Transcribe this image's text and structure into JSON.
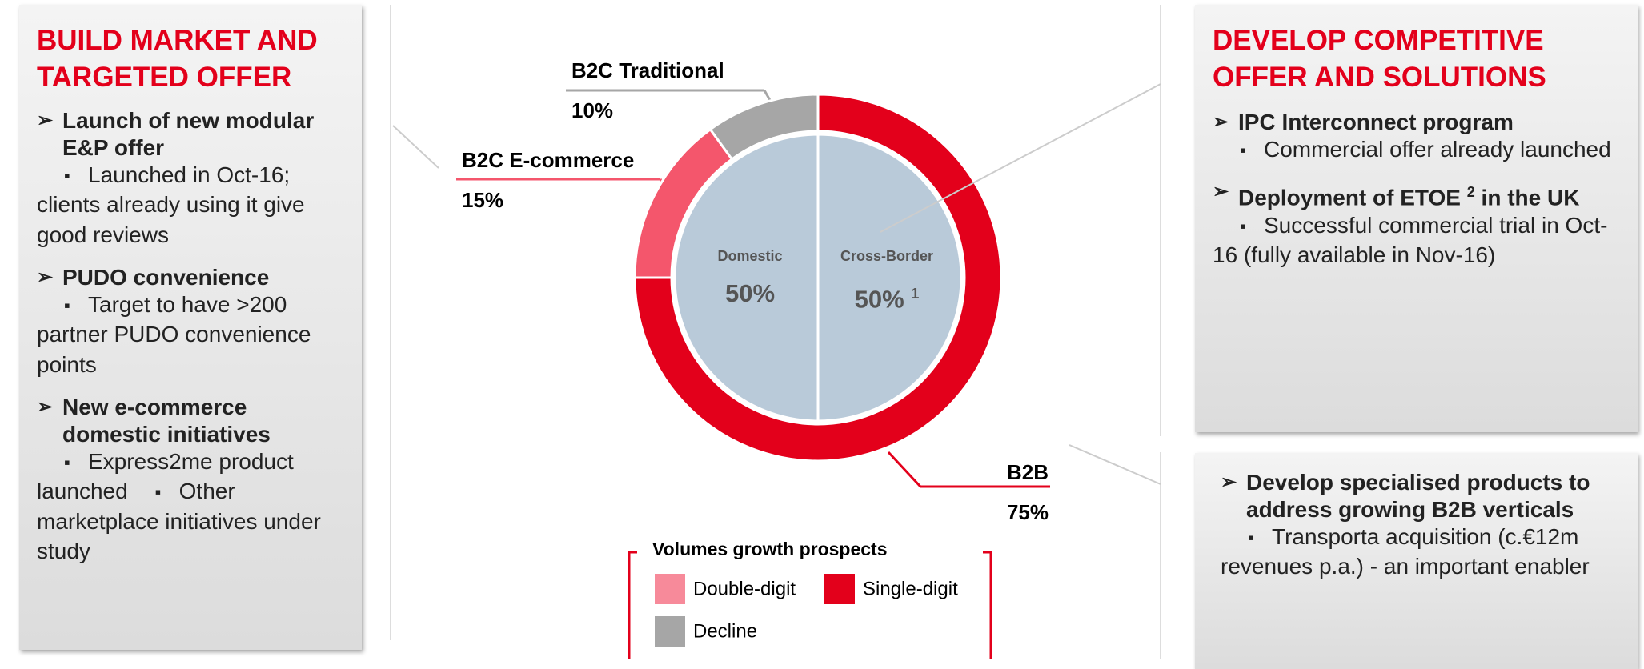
{
  "left_panel": {
    "title": "BUILD MARKET AND TARGETED OFFER",
    "items": [
      {
        "heading": "Launch of new modular E&P offer",
        "bullets": [
          "Launched in Oct-16; clients already using it give good reviews"
        ]
      },
      {
        "heading": "PUDO convenience",
        "bullets": [
          "Target to have >200 partner PUDO convenience points"
        ]
      },
      {
        "heading": "New e-commerce domestic initiatives",
        "bullets": [
          "Express2me product launched",
          "Other marketplace initiatives under study"
        ]
      }
    ]
  },
  "right_top_panel": {
    "title": "DEVELOP COMPETITIVE OFFER AND SOLUTIONS",
    "items": [
      {
        "heading": "IPC Interconnect program",
        "bullets": [
          "Commercial offer already launched"
        ]
      },
      {
        "heading": "Deployment of ETOE",
        "heading_sup": "2",
        "heading_end": "in the UK",
        "bullets": [
          "Successful commercial trial in Oct-16 (fully available in Nov-16)"
        ]
      }
    ]
  },
  "right_bottom_panel": {
    "items": [
      {
        "heading": "Develop specialised products to address growing B2B verticals",
        "bullets": [
          "Transporta acquisition (c.€12m revenues p.a.) - an important enabler"
        ]
      }
    ]
  },
  "chart_data": {
    "type": "donut",
    "outer": {
      "categories": [
        "B2B",
        "B2C E-commerce",
        "B2C Traditional"
      ],
      "values": [
        75,
        15,
        10
      ],
      "value_labels": [
        "75%",
        "15%",
        "10%"
      ],
      "colors": [
        "#e3001b",
        "#f4566c",
        "#a6a6a6"
      ]
    },
    "inner": {
      "categories": [
        "Domestic",
        "Cross-Border"
      ],
      "values": [
        50,
        50
      ],
      "value_labels": [
        "50%",
        "50%"
      ],
      "footnote": "1",
      "color": "#b9cad9"
    },
    "legend": {
      "title": "Volumes growth prospects",
      "entries": [
        {
          "name": "Double-digit",
          "color": "#f78a9a"
        },
        {
          "name": "Single-digit",
          "color": "#e3001b"
        },
        {
          "name": "Decline",
          "color": "#a6a6a6"
        }
      ]
    }
  }
}
